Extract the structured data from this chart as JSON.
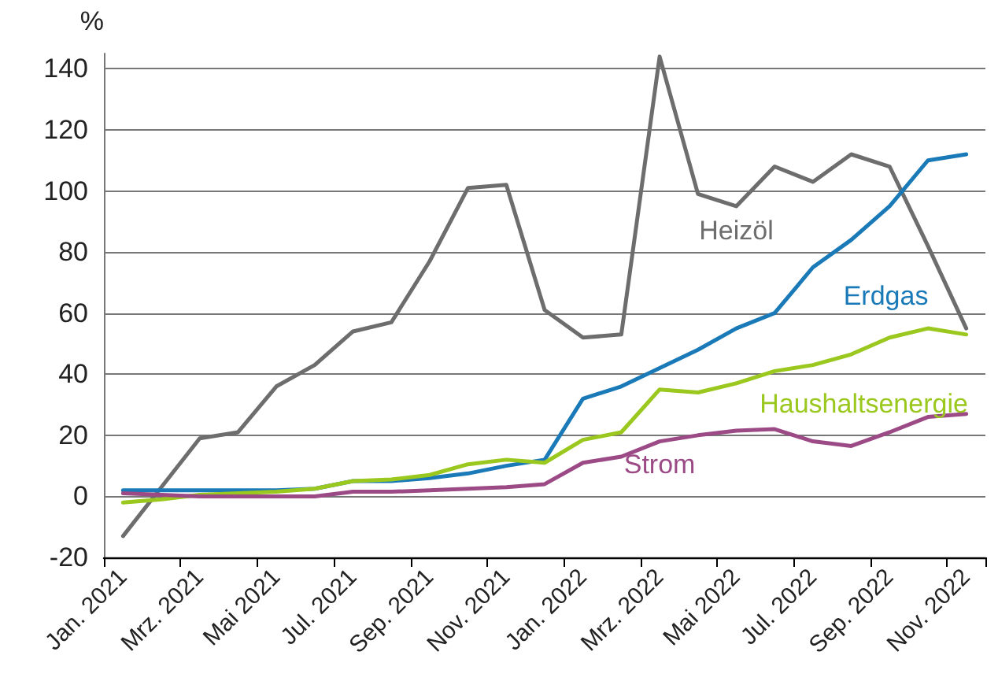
{
  "chart_data": {
    "type": "line",
    "ylabel": "%",
    "categories": [
      "Jan. 2021",
      null,
      "Mrz. 2021",
      null,
      "Mai 2021",
      null,
      "Jul. 2021",
      null,
      "Sep. 2021",
      null,
      "Nov. 2021",
      null,
      "Jan. 2022",
      null,
      "Mrz. 2022",
      null,
      "Mai 2022",
      null,
      "Jul. 2022",
      null,
      "Sep. 2022",
      null,
      "Nov. 2022"
    ],
    "series": [
      {
        "name": "Heizöl",
        "color": "#6d6d6d",
        "values": [
          -13,
          3,
          19,
          21,
          36,
          43,
          54,
          57,
          77,
          101,
          102,
          61,
          52,
          53,
          144,
          99,
          95,
          108,
          103,
          112,
          108,
          82,
          55
        ]
      },
      {
        "name": "Erdgas",
        "color": "#1a7ab8",
        "values": [
          2,
          2,
          2,
          2,
          2,
          2.5,
          5,
          5,
          6,
          7.5,
          10,
          12,
          32,
          36,
          42,
          48,
          55,
          60,
          75,
          84,
          95,
          110,
          112
        ]
      },
      {
        "name": "Haushaltsenergie",
        "color": "#9bc81e",
        "values": [
          -2,
          -1,
          0.5,
          1,
          1.5,
          2.5,
          5,
          5.5,
          7,
          10.5,
          12,
          11,
          18.5,
          21,
          35,
          34,
          37,
          41,
          43,
          46.5,
          52,
          55,
          53
        ]
      },
      {
        "name": "Strom",
        "color": "#9b4a86",
        "values": [
          1,
          0.5,
          0,
          0,
          0,
          0,
          1.5,
          1.5,
          2,
          2.5,
          3,
          4,
          11,
          13,
          18,
          20,
          21.5,
          22,
          18,
          16.5,
          21,
          26,
          27
        ]
      }
    ],
    "ylim": [
      -20,
      145
    ],
    "yticks": [
      -20,
      0,
      20,
      40,
      60,
      80,
      100,
      120,
      140
    ],
    "grid": "y",
    "legend": false,
    "marker": "none",
    "line_style": "solid"
  }
}
